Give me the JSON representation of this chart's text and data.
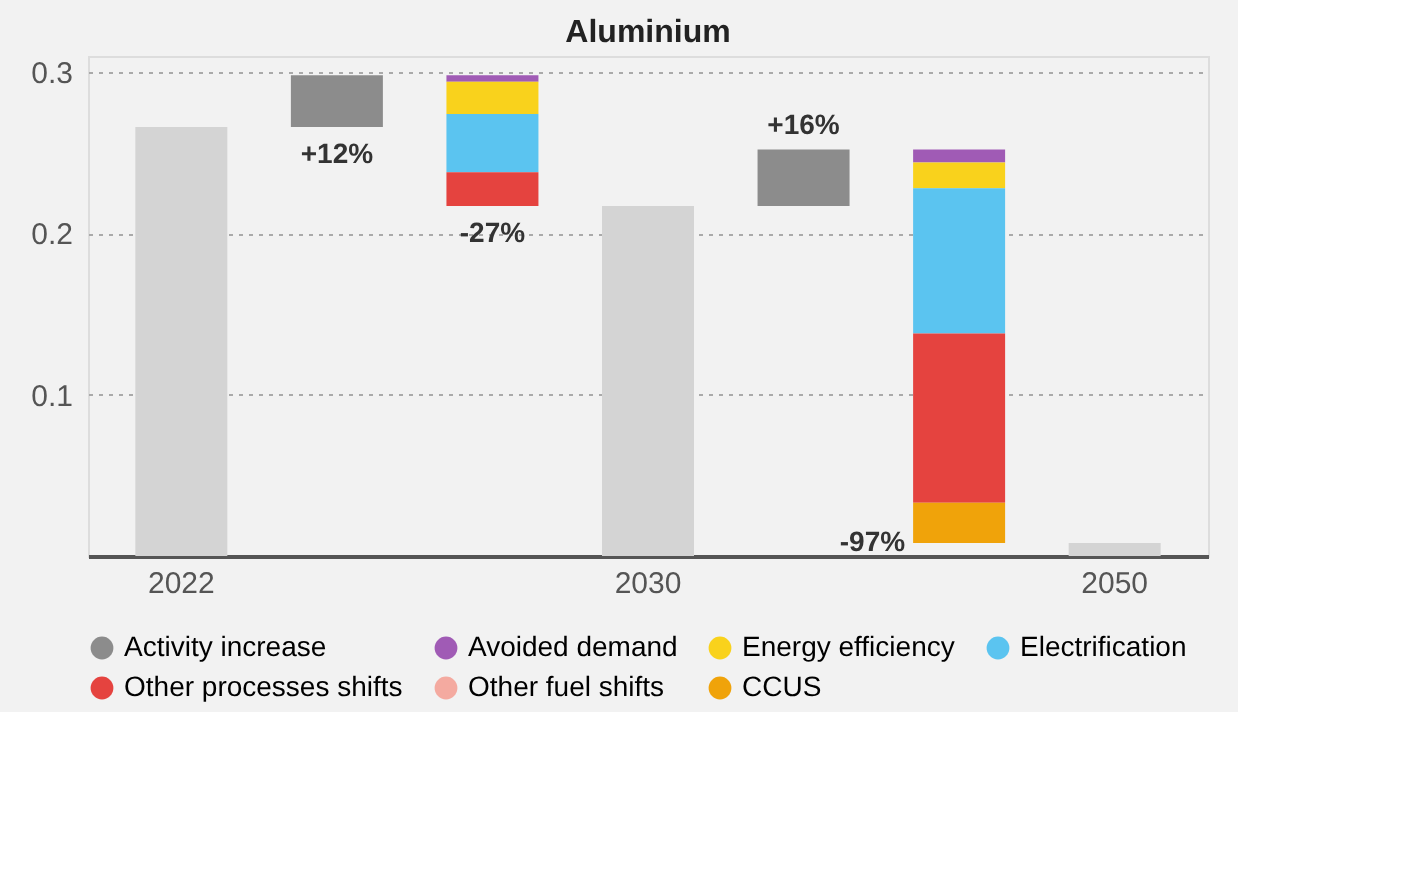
{
  "chart_data": {
    "type": "bar",
    "title": "Aluminium",
    "categories": [
      "2022",
      null,
      null,
      "2030",
      null,
      null,
      "2050"
    ],
    "series": [
      {
        "color": "#d4d4d4",
        "values": [
          0.266,
          null,
          null,
          0.217,
          null,
          null,
          0.008
        ]
      },
      {
        "name": "Activity increase",
        "color": "#8c8c8c",
        "base": [
          null,
          0.266,
          null,
          null,
          0.217,
          null,
          null
        ],
        "values": [
          null,
          0.032,
          null,
          null,
          0.035,
          null,
          null
        ]
      },
      {
        "name": "Avoided demand",
        "color": "#a05bb5",
        "base": [
          null,
          null,
          0.294,
          null,
          null,
          0.244,
          null
        ],
        "values": [
          null,
          null,
          0.004,
          null,
          null,
          0.008,
          null
        ]
      },
      {
        "name": "Energy efficiency",
        "color": "#f9d21c",
        "base": [
          null,
          null,
          0.274,
          null,
          null,
          0.228,
          null
        ],
        "values": [
          null,
          null,
          0.02,
          null,
          null,
          0.016,
          null
        ]
      },
      {
        "name": "Electrification",
        "color": "#5bc4f0",
        "base": [
          null,
          null,
          0.238,
          null,
          null,
          0.138,
          null
        ],
        "values": [
          null,
          null,
          0.036,
          null,
          null,
          0.09,
          null
        ]
      },
      {
        "name": "Other processes shifts",
        "color": "#e5433f",
        "base": [
          null,
          null,
          0.217,
          null,
          null,
          0.033,
          null
        ],
        "values": [
          null,
          null,
          0.021,
          null,
          null,
          0.105,
          null
        ]
      },
      {
        "name": "Other fuel shifts",
        "color": "#f4aaa0",
        "values": [
          null,
          null,
          null,
          null,
          null,
          null,
          null
        ]
      },
      {
        "name": "CCUS",
        "color": "#f0a30a",
        "base": [
          null,
          null,
          null,
          null,
          null,
          0.008,
          null
        ],
        "values": [
          null,
          null,
          null,
          null,
          null,
          0.025,
          null
        ]
      }
    ],
    "annotations": [
      {
        "text": "+12%",
        "y": 0.266
      },
      {
        "text": "-27%",
        "y": 0.217
      },
      {
        "text": "+16%",
        "y": 0.252
      },
      "-97%"
    ],
    "ylim": [
      0,
      0.31
    ],
    "yticks": [
      0.1,
      0.2,
      0.3
    ],
    "grid": "y",
    "legend": "bottom"
  }
}
